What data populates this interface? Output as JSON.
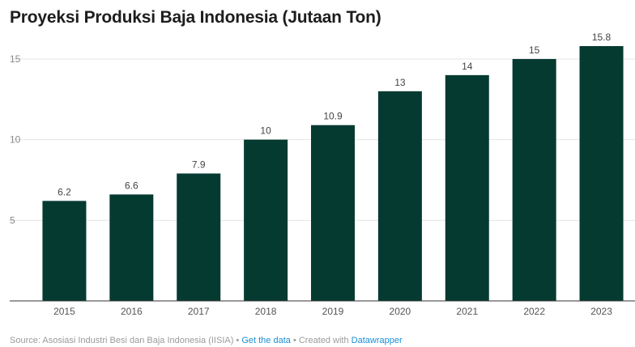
{
  "chart_data": {
    "type": "bar",
    "title": "Proyeksi Produksi Baja Indonesia (Jutaan Ton)",
    "xlabel": "",
    "ylabel": "",
    "categories": [
      "2015",
      "2016",
      "2017",
      "2018",
      "2019",
      "2020",
      "2021",
      "2022",
      "2023"
    ],
    "values": [
      6.2,
      6.6,
      7.9,
      10,
      10.9,
      13,
      14,
      15,
      15.8
    ],
    "value_labels": [
      "6.2",
      "6.6",
      "7.9",
      "10",
      "10.9",
      "13",
      "14",
      "15",
      "15.8"
    ],
    "ylim": [
      0,
      16
    ],
    "yticks": [
      5,
      10,
      15
    ],
    "ytick_labels": [
      "5",
      "10",
      "15"
    ],
    "grid": true,
    "bar_color": "#053a31"
  },
  "footer": {
    "source": "Source: Asosiasi Industri Besi dan Baja Indonesia (IISIA)",
    "sep1": " • ",
    "get_data": "Get the data",
    "sep2": " • ",
    "created": "Created with ",
    "tool": "Datawrapper"
  }
}
